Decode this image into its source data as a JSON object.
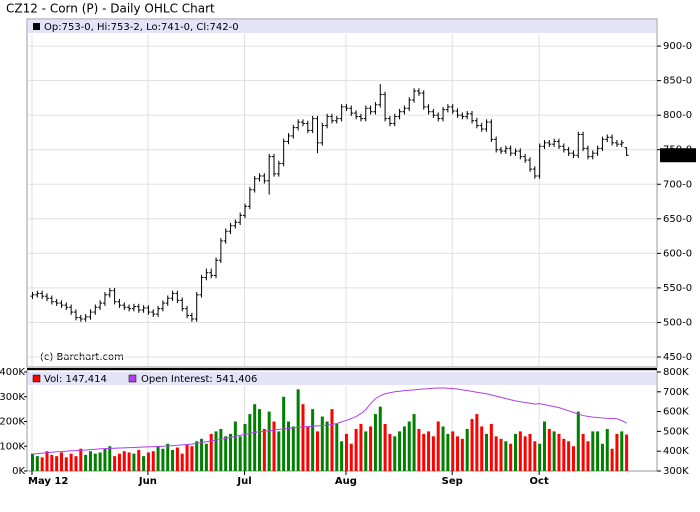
{
  "chart_data": {
    "type": "ohlc",
    "title": "CZ12 - Corn (P) - Daily OHLC Chart",
    "info": "Op:753-0, Hi:753-2, Lo:741-0, Cl:742-0",
    "copyright": "(c) Barchart.com",
    "color": "#000000",
    "grid": true,
    "categories": [
      "May 12",
      null,
      null,
      null,
      null,
      null,
      null,
      null,
      null,
      null,
      null,
      null,
      null,
      null,
      null,
      null,
      null,
      null,
      null,
      null,
      null,
      null,
      null,
      null,
      "Jun",
      null,
      null,
      null,
      null,
      null,
      null,
      null,
      null,
      null,
      null,
      null,
      null,
      null,
      null,
      null,
      null,
      null,
      null,
      null,
      "Jul",
      null,
      null,
      null,
      null,
      null,
      null,
      null,
      null,
      null,
      null,
      null,
      null,
      null,
      null,
      null,
      null,
      null,
      null,
      null,
      null,
      "Aug",
      null,
      null,
      null,
      null,
      null,
      null,
      null,
      null,
      null,
      null,
      null,
      null,
      null,
      null,
      null,
      null,
      null,
      null,
      null,
      null,
      null,
      "Sep",
      null,
      null,
      null,
      null,
      null,
      null,
      null,
      null,
      null,
      null,
      null,
      null,
      null,
      null,
      null,
      null,
      null,
      "Oct",
      null,
      null,
      null,
      null,
      null,
      null,
      null,
      null,
      null,
      null,
      null,
      null,
      null,
      null,
      null,
      null,
      null,
      null
    ],
    "open": [
      538,
      540,
      542,
      538,
      535,
      530,
      528,
      525,
      522,
      515,
      507,
      505,
      508,
      515,
      522,
      528,
      540,
      546,
      530,
      525,
      522,
      520,
      523,
      518,
      521,
      515,
      512,
      520,
      528,
      535,
      542,
      532,
      520,
      510,
      505,
      540,
      565,
      572,
      568,
      590,
      618,
      632,
      640,
      645,
      655,
      668,
      692,
      708,
      712,
      705,
      740,
      715,
      730,
      762,
      770,
      782,
      790,
      788,
      778,
      795,
      760,
      785,
      798,
      792,
      795,
      812,
      810,
      803,
      798,
      795,
      810,
      805,
      815,
      830,
      795,
      788,
      798,
      805,
      810,
      822,
      835,
      832,
      812,
      805,
      800,
      795,
      808,
      812,
      806,
      800,
      798,
      802,
      792,
      785,
      780,
      790,
      765,
      750,
      748,
      752,
      745,
      748,
      740,
      735,
      722,
      712,
      755,
      760,
      758,
      762,
      755,
      750,
      745,
      742,
      772,
      752,
      740,
      745,
      752,
      765,
      768,
      760,
      758,
      753
    ],
    "high": [
      544,
      546,
      546,
      542,
      539,
      534,
      532,
      529,
      526,
      519,
      511,
      512,
      519,
      526,
      532,
      544,
      550,
      550,
      534,
      529,
      526,
      527,
      527,
      525,
      525,
      519,
      524,
      532,
      539,
      546,
      546,
      536,
      524,
      514,
      544,
      569,
      578,
      578,
      594,
      622,
      636,
      644,
      649,
      659,
      672,
      696,
      712,
      716,
      716,
      744,
      744,
      734,
      766,
      774,
      786,
      794,
      794,
      792,
      799,
      799,
      789,
      802,
      802,
      799,
      816,
      816,
      814,
      807,
      802,
      814,
      814,
      819,
      845,
      834,
      799,
      802,
      809,
      814,
      826,
      839,
      839,
      836,
      816,
      809,
      804,
      812,
      816,
      816,
      810,
      804,
      806,
      806,
      796,
      789,
      794,
      794,
      769,
      754,
      756,
      756,
      752,
      752,
      744,
      739,
      726,
      759,
      764,
      764,
      766,
      766,
      759,
      754,
      749,
      776,
      776,
      756,
      749,
      756,
      769,
      772,
      772,
      764,
      764,
      753.25
    ],
    "low": [
      534,
      536,
      534,
      531,
      526,
      524,
      521,
      518,
      511,
      503,
      501,
      501,
      504,
      511,
      518,
      524,
      536,
      526,
      521,
      518,
      516,
      516,
      514,
      514,
      511,
      508,
      508,
      516,
      524,
      531,
      528,
      516,
      506,
      501,
      501,
      536,
      561,
      564,
      564,
      586,
      614,
      628,
      636,
      641,
      651,
      664,
      688,
      704,
      701,
      685,
      711,
      711,
      726,
      758,
      766,
      778,
      784,
      774,
      774,
      745,
      756,
      781,
      788,
      788,
      791,
      806,
      799,
      794,
      791,
      791,
      801,
      801,
      811,
      791,
      784,
      784,
      794,
      801,
      806,
      818,
      828,
      808,
      801,
      796,
      791,
      791,
      804,
      802,
      796,
      794,
      794,
      788,
      781,
      776,
      776,
      761,
      746,
      744,
      744,
      741,
      741,
      736,
      731,
      718,
      708,
      708,
      751,
      754,
      754,
      751,
      746,
      741,
      738,
      738,
      748,
      736,
      736,
      741,
      748,
      761,
      756,
      754,
      754,
      741
    ],
    "close": [
      540,
      542,
      538,
      535,
      530,
      528,
      525,
      522,
      515,
      507,
      505,
      508,
      515,
      522,
      528,
      540,
      546,
      530,
      525,
      522,
      520,
      523,
      518,
      521,
      515,
      512,
      520,
      528,
      535,
      542,
      532,
      520,
      510,
      505,
      540,
      565,
      572,
      568,
      590,
      618,
      632,
      640,
      645,
      655,
      668,
      692,
      708,
      712,
      705,
      740,
      715,
      730,
      762,
      770,
      782,
      790,
      788,
      778,
      795,
      760,
      785,
      798,
      792,
      795,
      812,
      810,
      803,
      798,
      795,
      810,
      805,
      815,
      830,
      795,
      788,
      798,
      805,
      810,
      822,
      835,
      832,
      812,
      805,
      800,
      795,
      808,
      812,
      806,
      800,
      798,
      802,
      792,
      785,
      780,
      790,
      765,
      750,
      748,
      752,
      745,
      748,
      740,
      735,
      722,
      712,
      755,
      760,
      758,
      762,
      755,
      750,
      745,
      742,
      772,
      752,
      740,
      745,
      752,
      765,
      768,
      760,
      758,
      760,
      742
    ],
    "close_label": "742-0",
    "ylim": [
      435.5,
      939.2
    ],
    "yticks": [
      {
        "value": 450,
        "label": "450-0"
      },
      {
        "value": 500,
        "label": "500-0"
      },
      {
        "value": 550,
        "label": "550-0"
      },
      {
        "value": 600,
        "label": "600-0"
      },
      {
        "value": 650,
        "label": "650-0"
      },
      {
        "value": 700,
        "label": "700-0"
      },
      {
        "value": 750,
        "label": "750-0"
      },
      {
        "value": 800,
        "label": "800-0"
      },
      {
        "value": 850,
        "label": "850-0"
      },
      {
        "value": 900,
        "label": "900-0"
      }
    ],
    "volume": {
      "name": "Vol: 147,414",
      "legend_color": "#ff0000",
      "up_color": "#008000",
      "down_color": "#ff0000",
      "values": [
        70000,
        60000,
        55000,
        80000,
        65000,
        60000,
        75000,
        55000,
        70000,
        60000,
        90000,
        65000,
        80000,
        70000,
        75000,
        90000,
        100000,
        60000,
        70000,
        80000,
        75000,
        70000,
        85000,
        60000,
        75000,
        80000,
        100000,
        90000,
        110000,
        85000,
        95000,
        70000,
        105000,
        100000,
        120000,
        130000,
        110000,
        150000,
        160000,
        170000,
        140000,
        150000,
        200000,
        140000,
        190000,
        230000,
        270000,
        250000,
        170000,
        240000,
        200000,
        160000,
        300000,
        200000,
        180000,
        330000,
        270000,
        180000,
        250000,
        160000,
        220000,
        200000,
        250000,
        190000,
        120000,
        150000,
        110000,
        170000,
        190000,
        160000,
        180000,
        230000,
        260000,
        190000,
        150000,
        140000,
        160000,
        180000,
        200000,
        230000,
        170000,
        150000,
        160000,
        140000,
        200000,
        180000,
        150000,
        160000,
        140000,
        130000,
        170000,
        210000,
        230000,
        180000,
        150000,
        190000,
        140000,
        130000,
        120000,
        110000,
        150000,
        160000,
        140000,
        150000,
        120000,
        110000,
        200000,
        170000,
        160000,
        150000,
        130000,
        120000,
        100000,
        240000,
        150000,
        120000,
        160000,
        160000,
        110000,
        170000,
        90000,
        150000,
        160000,
        147414
      ],
      "ylim": [
        0,
        400000
      ],
      "yticks": [
        {
          "value": 0,
          "label": "0K"
        },
        {
          "value": 100000,
          "label": "100K"
        },
        {
          "value": 200000,
          "label": "200K"
        },
        {
          "value": 300000,
          "label": "300K"
        },
        {
          "value": 400000,
          "label": "400K"
        }
      ]
    },
    "open_interest": {
      "name": "Open Interest: 541,406",
      "color": "#b040e8",
      "axis": "y2",
      "values": [
        385000,
        388000,
        390000,
        392000,
        395000,
        397000,
        398000,
        400000,
        402000,
        403000,
        405000,
        406000,
        408000,
        410000,
        412000,
        413000,
        414000,
        415000,
        416000,
        417000,
        418000,
        419000,
        420000,
        421000,
        422000,
        423000,
        424000,
        425000,
        426000,
        428000,
        430000,
        432000,
        434000,
        436000,
        440000,
        444000,
        448000,
        452000,
        456000,
        460000,
        465000,
        470000,
        475000,
        480000,
        485000,
        490000,
        495000,
        498000,
        500000,
        503000,
        506000,
        510000,
        512000,
        515000,
        518000,
        520000,
        522000,
        524000,
        526000,
        528000,
        530000,
        532000,
        535000,
        540000,
        548000,
        556000,
        565000,
        575000,
        590000,
        610000,
        640000,
        665000,
        680000,
        690000,
        695000,
        700000,
        703000,
        706000,
        708000,
        710000,
        712000,
        714000,
        716000,
        718000,
        719000,
        720000,
        718000,
        716000,
        714000,
        710000,
        706000,
        702000,
        698000,
        694000,
        690000,
        684000,
        678000,
        672000,
        666000,
        660000,
        654000,
        650000,
        646000,
        642000,
        638000,
        640000,
        635000,
        630000,
        625000,
        620000,
        612000,
        604000,
        596000,
        588000,
        580000,
        576000,
        572000,
        570000,
        568000,
        566000,
        565000,
        564000,
        555000,
        541406
      ],
      "y2lim": [
        300000,
        800000
      ],
      "y2ticks": [
        {
          "value": 300000,
          "label": "300K"
        },
        {
          "value": 400000,
          "label": "400K"
        },
        {
          "value": 500000,
          "label": "500K"
        },
        {
          "value": 600000,
          "label": "600K"
        },
        {
          "value": 700000,
          "label": "700K"
        },
        {
          "value": 800000,
          "label": "800K"
        }
      ]
    }
  }
}
